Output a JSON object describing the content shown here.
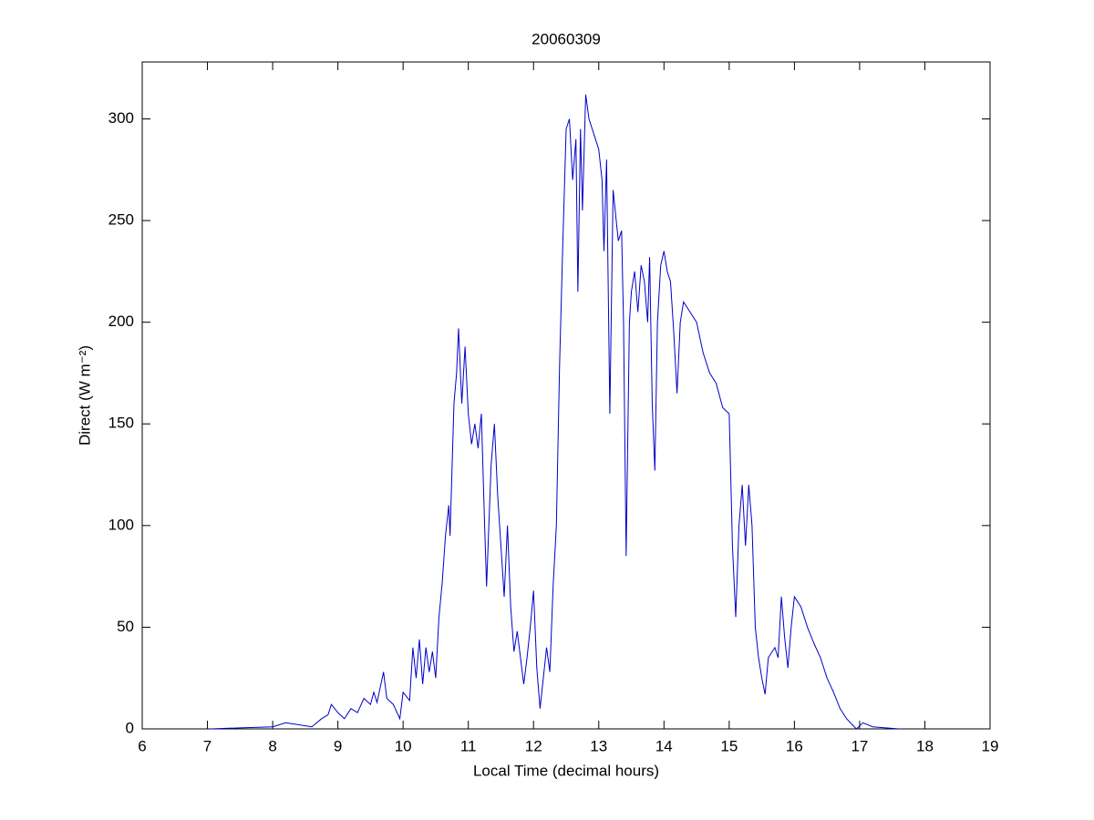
{
  "chart_data": {
    "type": "line",
    "title": "20060309",
    "xlabel": "Local Time (decimal hours)",
    "ylabel": "Direct (W m⁻²)",
    "xlim": [
      6,
      19
    ],
    "xticks": [
      6,
      7,
      8,
      9,
      10,
      11,
      12,
      13,
      14,
      15,
      16,
      17,
      18,
      19
    ],
    "ylim": [
      0,
      328
    ],
    "yticks": [
      0,
      50,
      100,
      150,
      200,
      250,
      300
    ],
    "series": [
      {
        "name": "Direct",
        "color": "#0000c8",
        "x": [
          7.05,
          7.5,
          8.0,
          8.2,
          8.4,
          8.6,
          8.75,
          8.85,
          8.9,
          9.0,
          9.1,
          9.2,
          9.3,
          9.4,
          9.5,
          9.55,
          9.6,
          9.7,
          9.75,
          9.85,
          9.95,
          10.0,
          10.1,
          10.15,
          10.2,
          10.25,
          10.3,
          10.35,
          10.4,
          10.45,
          10.5,
          10.55,
          10.6,
          10.65,
          10.7,
          10.72,
          10.78,
          10.82,
          10.85,
          10.9,
          10.95,
          11.0,
          11.05,
          11.1,
          11.15,
          11.2,
          11.25,
          11.28,
          11.35,
          11.4,
          11.45,
          11.5,
          11.55,
          11.6,
          11.65,
          11.7,
          11.75,
          11.8,
          11.85,
          11.9,
          11.95,
          12.0,
          12.05,
          12.1,
          12.15,
          12.2,
          12.25,
          12.3,
          12.35,
          12.4,
          12.45,
          12.5,
          12.55,
          12.6,
          12.65,
          12.68,
          12.72,
          12.75,
          12.8,
          12.85,
          12.9,
          12.95,
          13.0,
          13.05,
          13.08,
          13.12,
          13.17,
          13.22,
          13.3,
          13.35,
          13.38,
          13.42,
          13.47,
          13.5,
          13.55,
          13.6,
          13.65,
          13.7,
          13.75,
          13.78,
          13.82,
          13.86,
          13.9,
          13.95,
          14.0,
          14.05,
          14.1,
          14.15,
          14.2,
          14.25,
          14.3,
          14.4,
          14.5,
          14.6,
          14.7,
          14.8,
          14.9,
          15.0,
          15.05,
          15.1,
          15.15,
          15.2,
          15.25,
          15.3,
          15.35,
          15.4,
          15.45,
          15.5,
          15.55,
          15.6,
          15.7,
          15.75,
          15.8,
          15.85,
          15.9,
          15.95,
          16.0,
          16.1,
          16.2,
          16.3,
          16.4,
          16.5,
          16.6,
          16.7,
          16.8,
          16.95,
          17.05,
          17.2,
          17.4,
          17.6
        ],
        "values": [
          0,
          0.5,
          1,
          3,
          2,
          1,
          5,
          7,
          12,
          8,
          5,
          10,
          8,
          15,
          12,
          18,
          13,
          28,
          15,
          12,
          5,
          18,
          14,
          40,
          25,
          44,
          22,
          40,
          28,
          38,
          25,
          55,
          72,
          95,
          110,
          95,
          160,
          175,
          197,
          160,
          188,
          155,
          140,
          150,
          138,
          155,
          100,
          70,
          130,
          150,
          115,
          90,
          65,
          100,
          60,
          38,
          48,
          35,
          22,
          35,
          50,
          68,
          30,
          10,
          25,
          40,
          28,
          70,
          100,
          180,
          240,
          295,
          300,
          270,
          290,
          215,
          295,
          255,
          312,
          300,
          295,
          290,
          285,
          270,
          235,
          280,
          155,
          265,
          240,
          245,
          200,
          85,
          200,
          215,
          225,
          205,
          228,
          220,
          200,
          232,
          160,
          127,
          200,
          228,
          235,
          225,
          220,
          195,
          165,
          200,
          210,
          205,
          200,
          185,
          175,
          170,
          158,
          155,
          90,
          55,
          100,
          120,
          90,
          120,
          100,
          50,
          35,
          25,
          17,
          35,
          40,
          35,
          65,
          45,
          30,
          50,
          65,
          60,
          50,
          42,
          35,
          25,
          18,
          10,
          5,
          0,
          3,
          1,
          0.5,
          0
        ]
      }
    ]
  }
}
